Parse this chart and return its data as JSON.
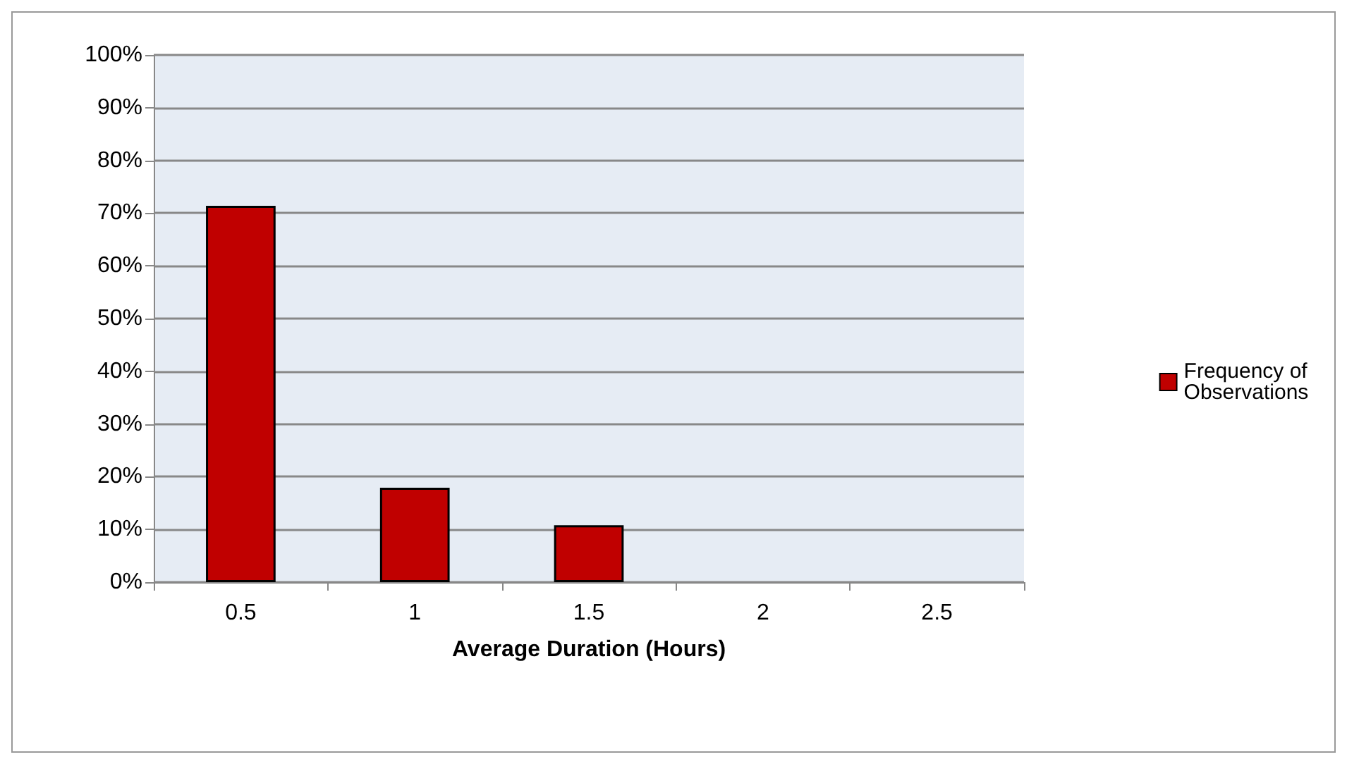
{
  "chart_data": {
    "type": "bar",
    "xlabel": "Average Duration (Hours)",
    "categories": [
      "0.5",
      "1",
      "1.5",
      "2",
      "2.5"
    ],
    "series": [
      {
        "name": "Frequency of Observations",
        "color": "#c00000",
        "values": [
          71.4,
          17.9,
          10.8,
          null,
          null
        ]
      }
    ],
    "ylim": [
      0,
      100
    ],
    "yticks": [
      {
        "value": 0,
        "label": "0%"
      },
      {
        "value": 10,
        "label": "10%"
      },
      {
        "value": 20,
        "label": "20%"
      },
      {
        "value": 30,
        "label": "30%"
      },
      {
        "value": 40,
        "label": "40%"
      },
      {
        "value": 50,
        "label": "50%"
      },
      {
        "value": 60,
        "label": "60%"
      },
      {
        "value": 70,
        "label": "70%"
      },
      {
        "value": 80,
        "label": "80%"
      },
      {
        "value": 90,
        "label": "90%"
      },
      {
        "value": 100,
        "label": "100%"
      }
    ],
    "grid": "y",
    "legend": "right"
  }
}
